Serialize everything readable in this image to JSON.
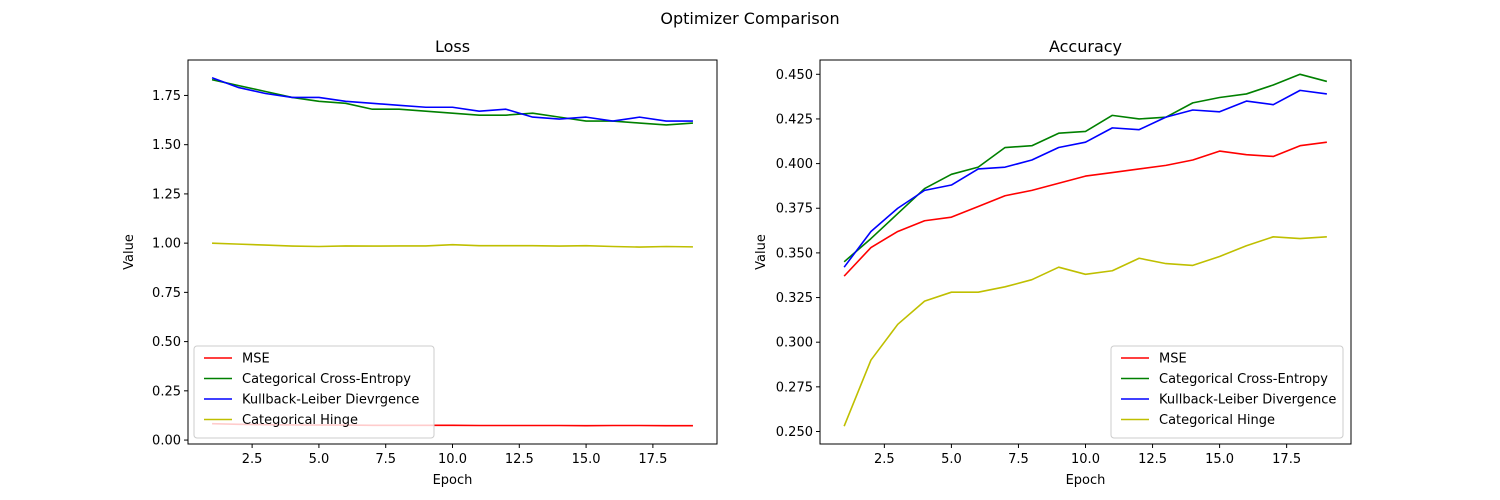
{
  "figure_title": "Optimizer Comparison",
  "chart_data": [
    {
      "type": "line",
      "title": "Loss",
      "xlabel": "Epoch",
      "ylabel": "Value",
      "xlim": [
        0.1,
        19.9
      ],
      "ylim": [
        -0.02,
        1.93
      ],
      "xticks": [
        2.5,
        5.0,
        7.5,
        10.0,
        12.5,
        15.0,
        17.5
      ],
      "xtick_labels": [
        "2.5",
        "5.0",
        "7.5",
        "10.0",
        "12.5",
        "15.0",
        "17.5"
      ],
      "yticks": [
        0.0,
        0.25,
        0.5,
        0.75,
        1.0,
        1.25,
        1.5,
        1.75
      ],
      "ytick_labels": [
        "0.00",
        "0.25",
        "0.50",
        "0.75",
        "1.00",
        "1.25",
        "1.50",
        "1.75"
      ],
      "grid": false,
      "legend_position": "lower-left",
      "x": [
        1,
        2,
        3,
        4,
        5,
        6,
        7,
        8,
        9,
        10,
        11,
        12,
        13,
        14,
        15,
        16,
        17,
        18,
        19
      ],
      "series": [
        {
          "name": "MSE",
          "color": "#ff0000",
          "values": [
            0.083,
            0.08,
            0.078,
            0.077,
            0.076,
            0.076,
            0.075,
            0.075,
            0.075,
            0.075,
            0.074,
            0.074,
            0.074,
            0.074,
            0.073,
            0.074,
            0.074,
            0.073,
            0.073
          ]
        },
        {
          "name": "Categorical Cross-Entropy",
          "color": "#008000",
          "values": [
            1.83,
            1.8,
            1.77,
            1.74,
            1.72,
            1.71,
            1.68,
            1.68,
            1.67,
            1.66,
            1.65,
            1.65,
            1.66,
            1.64,
            1.62,
            1.62,
            1.61,
            1.6,
            1.61
          ]
        },
        {
          "name": "Kullback-Leiber Dievrgence",
          "color": "#0000ff",
          "values": [
            1.84,
            1.79,
            1.76,
            1.74,
            1.74,
            1.72,
            1.71,
            1.7,
            1.69,
            1.69,
            1.67,
            1.68,
            1.64,
            1.63,
            1.64,
            1.62,
            1.64,
            1.62,
            1.62
          ]
        },
        {
          "name": "Categorical Hinge",
          "color": "#bfbf00",
          "values": [
            1.0,
            0.995,
            0.99,
            0.985,
            0.983,
            0.986,
            0.985,
            0.986,
            0.986,
            0.992,
            0.987,
            0.987,
            0.987,
            0.985,
            0.987,
            0.983,
            0.98,
            0.983,
            0.981
          ]
        }
      ]
    },
    {
      "type": "line",
      "title": "Accuracy",
      "xlabel": "Epoch",
      "ylabel": "Value",
      "xlim": [
        0.1,
        19.9
      ],
      "ylim": [
        0.243,
        0.458
      ],
      "xticks": [
        2.5,
        5.0,
        7.5,
        10.0,
        12.5,
        15.0,
        17.5
      ],
      "xtick_labels": [
        "2.5",
        "5.0",
        "7.5",
        "10.0",
        "12.5",
        "15.0",
        "17.5"
      ],
      "yticks": [
        0.25,
        0.275,
        0.3,
        0.325,
        0.35,
        0.375,
        0.4,
        0.425,
        0.45
      ],
      "ytick_labels": [
        "0.250",
        "0.275",
        "0.300",
        "0.325",
        "0.350",
        "0.375",
        "0.400",
        "0.425",
        "0.450"
      ],
      "grid": false,
      "legend_position": "lower-right",
      "x": [
        1,
        2,
        3,
        4,
        5,
        6,
        7,
        8,
        9,
        10,
        11,
        12,
        13,
        14,
        15,
        16,
        17,
        18,
        19
      ],
      "series": [
        {
          "name": "MSE",
          "color": "#ff0000",
          "values": [
            0.337,
            0.353,
            0.362,
            0.368,
            0.37,
            0.376,
            0.382,
            0.385,
            0.389,
            0.393,
            0.395,
            0.397,
            0.399,
            0.402,
            0.407,
            0.405,
            0.404,
            0.41,
            0.412
          ]
        },
        {
          "name": "Categorical Cross-Entropy",
          "color": "#008000",
          "values": [
            0.345,
            0.358,
            0.372,
            0.386,
            0.394,
            0.398,
            0.409,
            0.41,
            0.417,
            0.418,
            0.427,
            0.425,
            0.426,
            0.434,
            0.437,
            0.439,
            0.444,
            0.45,
            0.446
          ]
        },
        {
          "name": "Kullback-Leiber Divergence",
          "color": "#0000ff",
          "values": [
            0.342,
            0.362,
            0.375,
            0.385,
            0.388,
            0.397,
            0.398,
            0.402,
            0.409,
            0.412,
            0.42,
            0.419,
            0.426,
            0.43,
            0.429,
            0.435,
            0.433,
            0.441,
            0.439
          ]
        },
        {
          "name": "Categorical Hinge",
          "color": "#bfbf00",
          "values": [
            0.253,
            0.29,
            0.31,
            0.323,
            0.328,
            0.328,
            0.331,
            0.335,
            0.342,
            0.338,
            0.34,
            0.347,
            0.344,
            0.343,
            0.348,
            0.354,
            0.359,
            0.358,
            0.359
          ]
        }
      ]
    }
  ]
}
